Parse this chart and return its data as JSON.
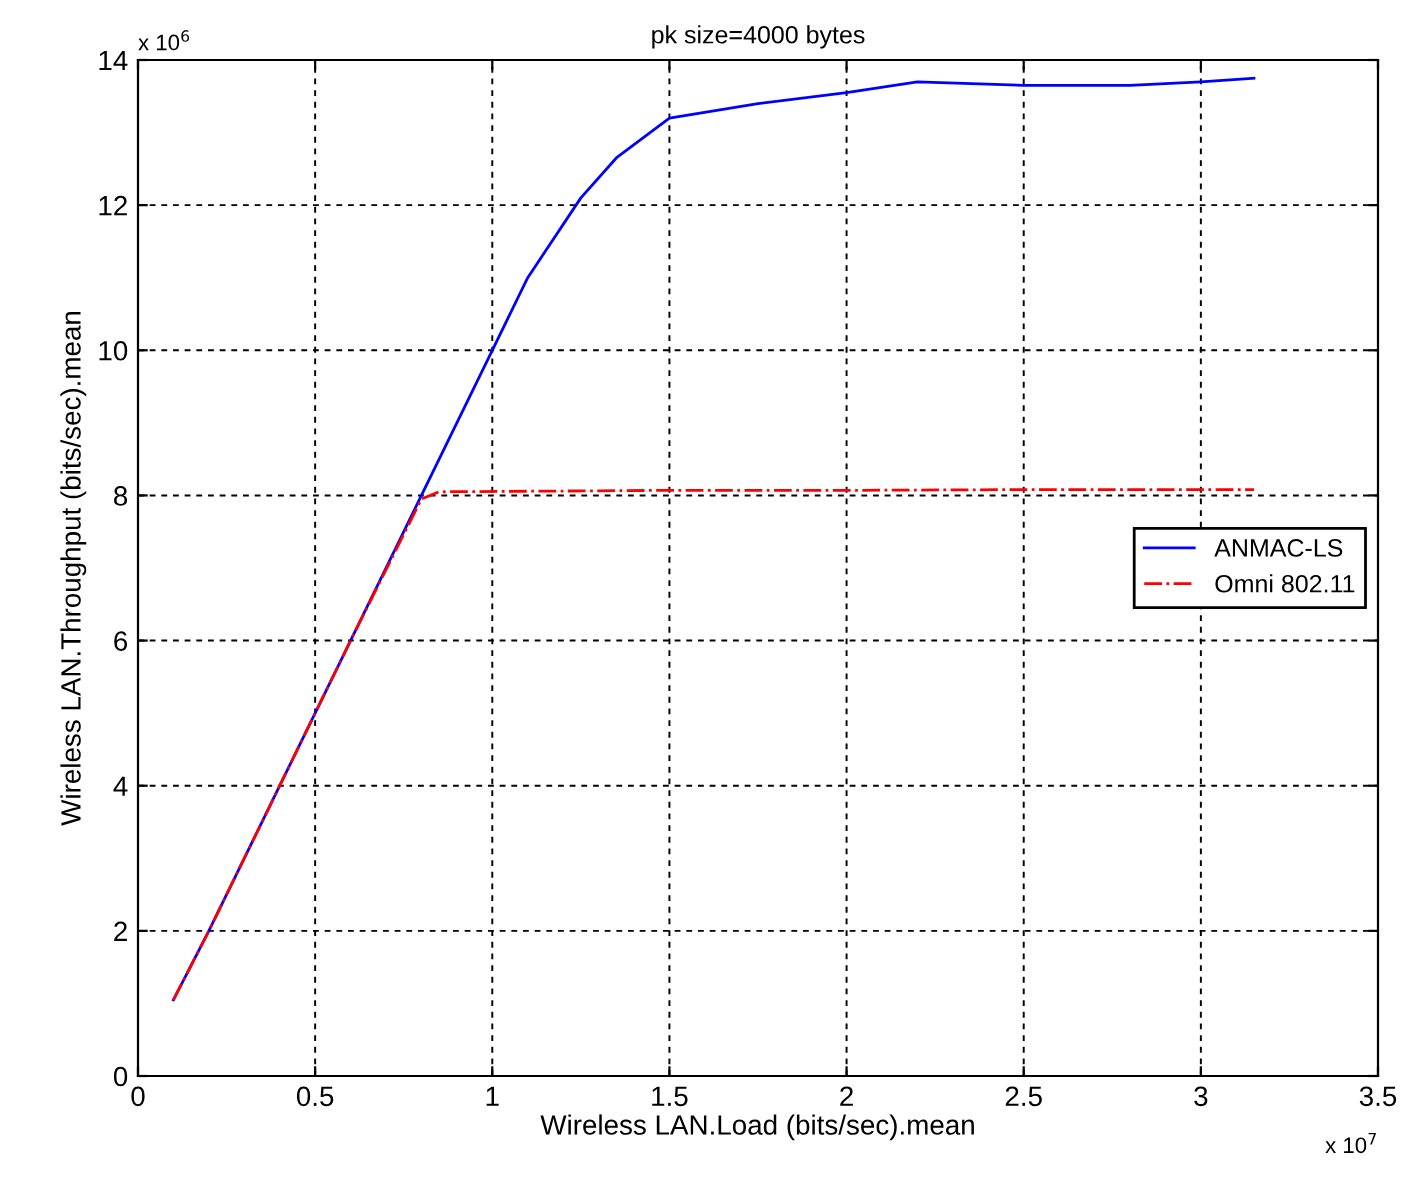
{
  "chart_data": {
    "type": "line",
    "title": "pk size=4000 bytes",
    "xlabel": "Wireless LAN.Load (bits/sec).mean",
    "ylabel": "Wireless LAN.Throughput (bits/sec).mean",
    "annotations": [
      "x 10$^{6}$",
      "x 10$^{7}$"
    ],
    "xlim": [
      0,
      3.5
    ],
    "xticks": [
      0,
      0.5,
      1,
      1.5,
      2,
      2.5,
      3,
      3.5
    ],
    "ylim": [
      0,
      14
    ],
    "yticks": [
      0,
      2,
      4,
      6,
      8,
      10,
      12,
      14
    ],
    "grid": true,
    "legend": "center right",
    "marker": "none",
    "series": [
      {
        "name": "ANMAC-LS",
        "color": "#0000ff",
        "line_style": "solid",
        "x": [
          0.1,
          0.2,
          0.4,
          0.6,
          0.8,
          1.0,
          1.1,
          1.25,
          1.35,
          1.5,
          1.75,
          2.0,
          2.2,
          2.5,
          2.8,
          3.0,
          3.15
        ],
        "values": [
          1.05,
          2.0,
          4.0,
          6.0,
          8.0,
          10.0,
          11.0,
          12.1,
          12.65,
          13.2,
          13.4,
          13.55,
          13.7,
          13.65,
          13.65,
          13.7,
          13.75
        ]
      },
      {
        "name": "Omni 802.11",
        "color": "#ff0000",
        "line_style": "dashdot",
        "x": [
          0.1,
          0.2,
          0.4,
          0.6,
          0.8,
          0.85,
          1.5,
          2.0,
          2.5,
          3.15
        ],
        "values": [
          1.05,
          2.0,
          4.0,
          6.0,
          7.95,
          8.05,
          8.07,
          8.07,
          8.08,
          8.08
        ]
      }
    ]
  }
}
